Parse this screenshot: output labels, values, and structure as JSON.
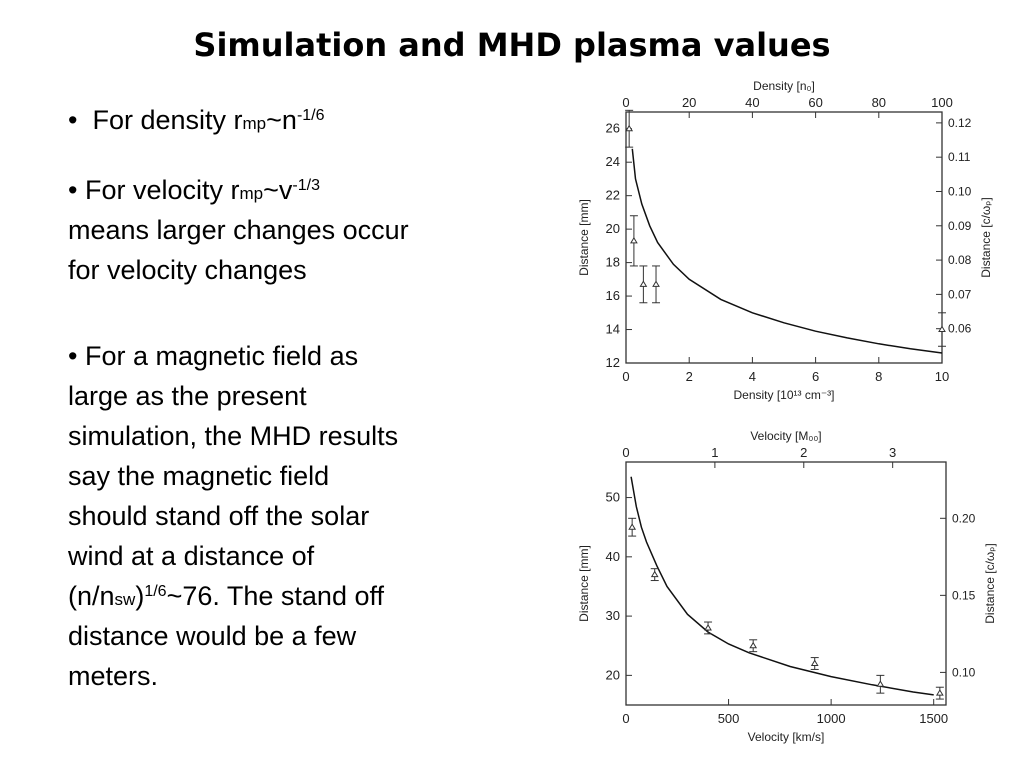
{
  "slide": {
    "title": "Simulation and MHD plasma values",
    "bullet1": {
      "prefix": "For density r",
      "sub": "mp",
      "mid": "~n",
      "sup": "-1/6"
    },
    "bullet2": {
      "prefix": "• For velocity r",
      "sub": "mp",
      "mid": "~v",
      "sup": "-1/3",
      "line2": "means larger changes occur",
      "line3": "for velocity changes"
    },
    "bullet3": {
      "lines": [
        "• For a magnetic field as",
        "large as the present",
        "simulation, the MHD results",
        "say the magnetic field",
        "should stand off the solar",
        "wind at a distance of"
      ],
      "line7_a": "(n/n",
      "line7_sub": "sw",
      "line7_b": ")",
      "line7_sup": "1/6",
      "line7_c": "~76. The stand off",
      "line8": "distance would be a few",
      "line9": "meters."
    }
  },
  "chart_data": [
    {
      "type": "line",
      "title": "",
      "xlabel": "Density [10¹³ cm⁻³]",
      "ylabel": "Distance [mm]",
      "x2label": "Density [n₀]",
      "y2label": "Distance [c/ωₚ]",
      "xlim": [
        0,
        10
      ],
      "ylim": [
        12,
        27
      ],
      "x2lim": [
        0,
        100
      ],
      "xticks": [
        0,
        2,
        4,
        6,
        8,
        10
      ],
      "yticks": [
        12,
        14,
        16,
        18,
        20,
        22,
        24,
        26
      ],
      "x2ticks": [
        0,
        20,
        40,
        60,
        80,
        100
      ],
      "y2ticks": [
        "0.06",
        "0.07",
        "0.08",
        "0.09",
        "0.10",
        "0.11",
        "0.12"
      ],
      "y2tick_values": [
        14.05,
        16.1,
        18.15,
        20.2,
        22.25,
        24.3,
        26.35
      ],
      "curve": {
        "x": [
          0.2,
          0.3,
          0.5,
          0.75,
          1,
          1.5,
          2,
          3,
          4,
          5,
          6,
          7,
          8,
          9,
          10
        ],
        "y": [
          24.8,
          23.0,
          21.5,
          20.2,
          19.2,
          17.9,
          17.0,
          15.8,
          15.0,
          14.4,
          13.9,
          13.5,
          13.15,
          12.85,
          12.6
        ]
      },
      "points": {
        "x": [
          0.1,
          0.25,
          0.55,
          0.95,
          10
        ],
        "y": [
          26.0,
          19.3,
          16.7,
          16.7,
          14.0
        ],
        "err": [
          1.1,
          1.5,
          1.1,
          1.1,
          1.0
        ]
      }
    },
    {
      "type": "line",
      "title": "",
      "xlabel": "Velocity [km/s]",
      "ylabel": "Distance [mm]",
      "x2label": "Velocity [M₀₀]",
      "y2label": "Distance [c/ωₚ]",
      "xlim": [
        0,
        1560
      ],
      "ylim": [
        15,
        56
      ],
      "x2lim": [
        0,
        3.6
      ],
      "xticks": [
        0,
        500,
        1000,
        1500
      ],
      "yticks": [
        20,
        30,
        40,
        50
      ],
      "x2ticks": [
        0,
        1,
        2,
        3
      ],
      "y2ticks": [
        "0.10",
        "0.15",
        "0.20"
      ],
      "y2tick_values": [
        20.5,
        33.5,
        46.5
      ],
      "curve": {
        "x": [
          25,
          50,
          75,
          100,
          150,
          200,
          300,
          400,
          500,
          600,
          800,
          1000,
          1200,
          1400,
          1500
        ],
        "y": [
          53.5,
          48.5,
          45.0,
          42.5,
          38.5,
          35.0,
          30.3,
          27.3,
          25.3,
          23.8,
          21.5,
          19.8,
          18.4,
          17.2,
          16.7
        ]
      },
      "points": {
        "x": [
          30,
          140,
          400,
          620,
          920,
          1240,
          1530
        ],
        "y": [
          45.0,
          37.0,
          28.0,
          25.0,
          22.0,
          18.5,
          17.0
        ],
        "err": [
          1.5,
          1.0,
          1.0,
          1.0,
          1.0,
          1.5,
          1.0
        ]
      }
    }
  ]
}
